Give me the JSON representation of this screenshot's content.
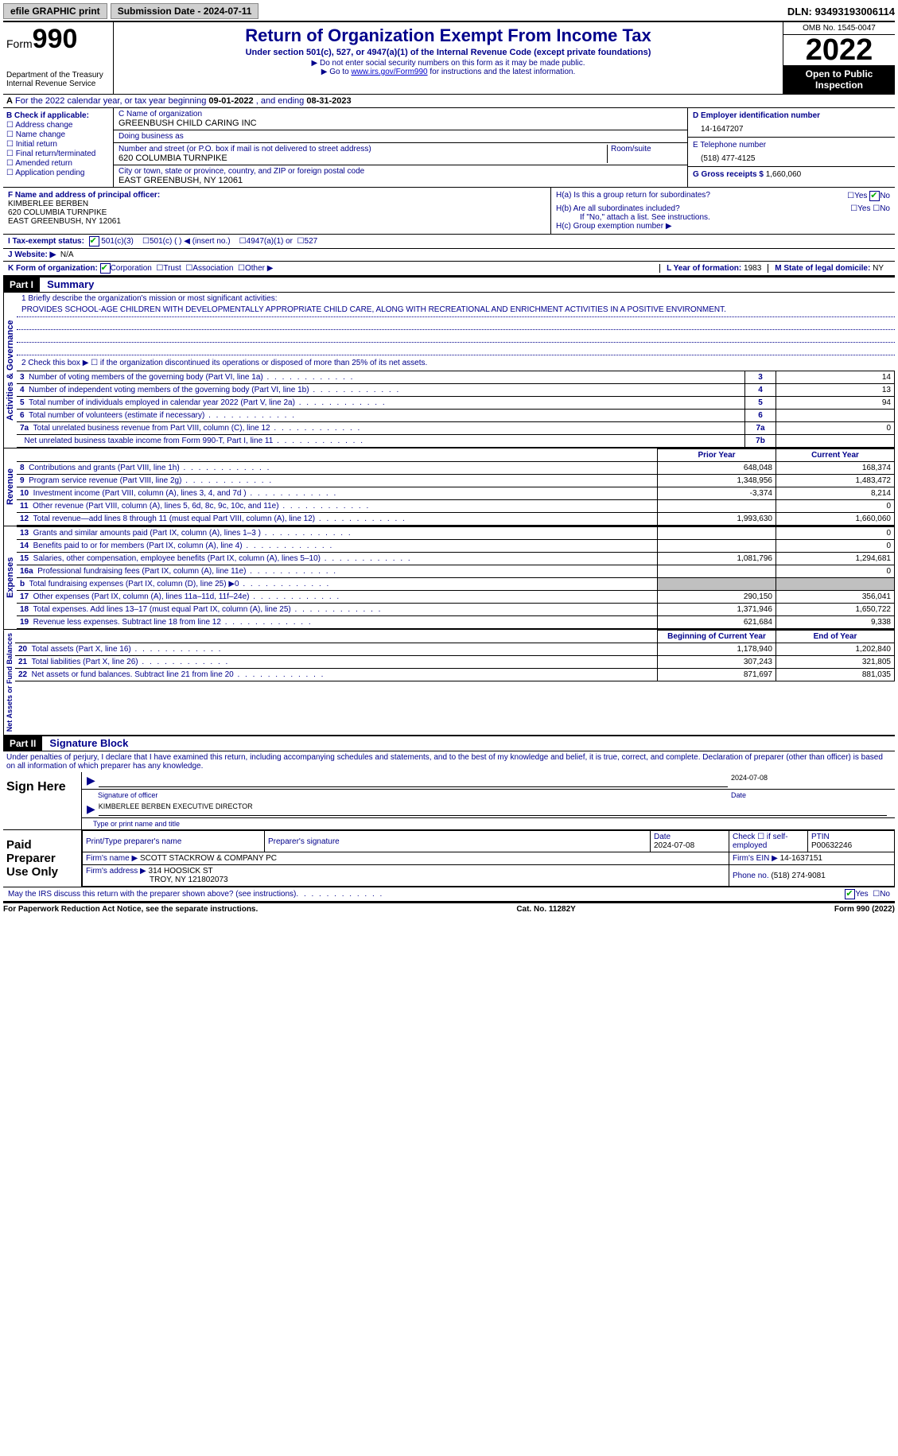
{
  "topbar": {
    "efile": "efile GRAPHIC print",
    "submission": "Submission Date - 2024-07-11",
    "dln": "DLN: 93493193006114"
  },
  "header": {
    "form_word": "Form",
    "form_num": "990",
    "dept": "Department of the Treasury",
    "irs": "Internal Revenue Service",
    "title": "Return of Organization Exempt From Income Tax",
    "sub": "Under section 501(c), 527, or 4947(a)(1) of the Internal Revenue Code (except private foundations)",
    "note1": "▶ Do not enter social security numbers on this form as it may be made public.",
    "note2_pre": "▶ Go to ",
    "note2_link": "www.irs.gov/Form990",
    "note2_post": " for instructions and the latest information.",
    "omb": "OMB No. 1545-0047",
    "year": "2022",
    "inspect": "Open to Public Inspection"
  },
  "rowA": {
    "label_a": "A",
    "text": " For the 2022 calendar year, or tax year beginning ",
    "begin": "09-01-2022",
    "mid": " , and ending ",
    "end": "08-31-2023"
  },
  "colB": {
    "header": "B Check if applicable:",
    "items": [
      "Address change",
      "Name change",
      "Initial return",
      "Final return/terminated",
      "Amended return",
      "Application pending"
    ]
  },
  "colC": {
    "name_lbl": "C Name of organization",
    "name": "GREENBUSH CHILD CARING INC",
    "dba_lbl": "Doing business as",
    "dba": "",
    "addr_lbl": "Number and street (or P.O. box if mail is not delivered to street address)",
    "room_lbl": "Room/suite",
    "addr": "620 COLUMBIA TURNPIKE",
    "city_lbl": "City or town, state or province, country, and ZIP or foreign postal code",
    "city": "EAST GREENBUSH, NY  12061"
  },
  "colD": {
    "ein_lbl": "D Employer identification number",
    "ein": "14-1647207",
    "tel_lbl": "E Telephone number",
    "tel": "(518) 477-4125",
    "gross_lbl": "G Gross receipts $",
    "gross": "1,660,060"
  },
  "rowF": {
    "lbl": "F Name and address of principal officer:",
    "name": "KIMBERLEE BERBEN",
    "addr1": "620 COLUMBIA TURNPIKE",
    "addr2": "EAST GREENBUSH, NY  12061"
  },
  "rowH": {
    "ha": "H(a)  Is this a group return for subordinates?",
    "hb": "H(b)  Are all subordinates included?",
    "hb_note": "If \"No,\" attach a list. See instructions.",
    "hc": "H(c)  Group exemption number ▶",
    "yes": "Yes",
    "no": "No"
  },
  "rowI": {
    "lbl": "I  Tax-exempt status:",
    "opt1": "501(c)(3)",
    "opt2": "501(c) (  ) ◀ (insert no.)",
    "opt3": "4947(a)(1) or",
    "opt4": "527"
  },
  "rowJ": {
    "lbl": "J  Website: ▶",
    "val": "N/A"
  },
  "rowK": {
    "lbl": "K Form of organization:",
    "opts": [
      "Corporation",
      "Trust",
      "Association",
      "Other ▶"
    ],
    "l_lbl": "L Year of formation:",
    "l_val": "1983",
    "m_lbl": "M State of legal domicile:",
    "m_val": "NY"
  },
  "part1": {
    "hdr": "Part I",
    "title": "Summary",
    "line1_lbl": "1  Briefly describe the organization's mission or most significant activities:",
    "mission": "PROVIDES SCHOOL-AGE CHILDREN WITH DEVELOPMENTALLY APPROPRIATE CHILD CARE, ALONG WITH RECREATIONAL AND ENRICHMENT ACTIVITIES IN A POSITIVE ENVIRONMENT.",
    "line2": "2   Check this box ▶ ☐  if the organization discontinued its operations or disposed of more than 25% of its net assets.",
    "side_ag": "Activities & Governance",
    "side_rev": "Revenue",
    "side_exp": "Expenses",
    "side_na": "Net Assets or Fund Balances",
    "rows_ag": [
      {
        "n": "3",
        "t": "Number of voting members of the governing body (Part VI, line 1a)",
        "box": "3",
        "v": "14"
      },
      {
        "n": "4",
        "t": "Number of independent voting members of the governing body (Part VI, line 1b)",
        "box": "4",
        "v": "13"
      },
      {
        "n": "5",
        "t": "Total number of individuals employed in calendar year 2022 (Part V, line 2a)",
        "box": "5",
        "v": "94"
      },
      {
        "n": "6",
        "t": "Total number of volunteers (estimate if necessary)",
        "box": "6",
        "v": ""
      },
      {
        "n": "7a",
        "t": "Total unrelated business revenue from Part VIII, column (C), line 12",
        "box": "7a",
        "v": "0"
      },
      {
        "n": "",
        "t": "Net unrelated business taxable income from Form 990-T, Part I, line 11",
        "box": "7b",
        "v": ""
      }
    ],
    "col_prior": "Prior Year",
    "col_curr": "Current Year",
    "rows_rev": [
      {
        "n": "8",
        "t": "Contributions and grants (Part VIII, line 1h)",
        "p": "648,048",
        "c": "168,374"
      },
      {
        "n": "9",
        "t": "Program service revenue (Part VIII, line 2g)",
        "p": "1,348,956",
        "c": "1,483,472"
      },
      {
        "n": "10",
        "t": "Investment income (Part VIII, column (A), lines 3, 4, and 7d )",
        "p": "-3,374",
        "c": "8,214"
      },
      {
        "n": "11",
        "t": "Other revenue (Part VIII, column (A), lines 5, 6d, 8c, 9c, 10c, and 11e)",
        "p": "",
        "c": "0"
      },
      {
        "n": "12",
        "t": "Total revenue—add lines 8 through 11 (must equal Part VIII, column (A), line 12)",
        "p": "1,993,630",
        "c": "1,660,060"
      }
    ],
    "rows_exp": [
      {
        "n": "13",
        "t": "Grants and similar amounts paid (Part IX, column (A), lines 1–3 )",
        "p": "",
        "c": "0"
      },
      {
        "n": "14",
        "t": "Benefits paid to or for members (Part IX, column (A), line 4)",
        "p": "",
        "c": "0"
      },
      {
        "n": "15",
        "t": "Salaries, other compensation, employee benefits (Part IX, column (A), lines 5–10)",
        "p": "1,081,796",
        "c": "1,294,681"
      },
      {
        "n": "16a",
        "t": "Professional fundraising fees (Part IX, column (A), line 11e)",
        "p": "",
        "c": "0"
      },
      {
        "n": "b",
        "t": "Total fundraising expenses (Part IX, column (D), line 25) ▶0",
        "p": "GREY",
        "c": "GREY"
      },
      {
        "n": "17",
        "t": "Other expenses (Part IX, column (A), lines 11a–11d, 11f–24e)",
        "p": "290,150",
        "c": "356,041"
      },
      {
        "n": "18",
        "t": "Total expenses. Add lines 13–17 (must equal Part IX, column (A), line 25)",
        "p": "1,371,946",
        "c": "1,650,722"
      },
      {
        "n": "19",
        "t": "Revenue less expenses. Subtract line 18 from line 12",
        "p": "621,684",
        "c": "9,338"
      }
    ],
    "col_begin": "Beginning of Current Year",
    "col_end": "End of Year",
    "rows_na": [
      {
        "n": "20",
        "t": "Total assets (Part X, line 16)",
        "p": "1,178,940",
        "c": "1,202,840"
      },
      {
        "n": "21",
        "t": "Total liabilities (Part X, line 26)",
        "p": "307,243",
        "c": "321,805"
      },
      {
        "n": "22",
        "t": "Net assets or fund balances. Subtract line 21 from line 20",
        "p": "871,697",
        "c": "881,035"
      }
    ]
  },
  "part2": {
    "hdr": "Part II",
    "title": "Signature Block",
    "decl": "Under penalties of perjury, I declare that I have examined this return, including accompanying schedules and statements, and to the best of my knowledge and belief, it is true, correct, and complete. Declaration of preparer (other than officer) is based on all information of which preparer has any knowledge.",
    "sign_here": "Sign Here",
    "sig_officer": "Signature of officer",
    "sig_date": "2024-07-08",
    "date_lbl": "Date",
    "name_title": "KIMBERLEE BERBEN  EXECUTIVE DIRECTOR",
    "type_name": "Type or print name and title",
    "paid": "Paid Preparer Use Only",
    "prep_name_lbl": "Print/Type preparer's name",
    "prep_sig_lbl": "Preparer's signature",
    "prep_date_lbl": "Date",
    "prep_date": "2024-07-08",
    "check_self": "Check ☐ if self-employed",
    "ptin_lbl": "PTIN",
    "ptin": "P00632246",
    "firm_name_lbl": "Firm's name    ▶",
    "firm_name": "SCOTT STACKROW & COMPANY PC",
    "firm_ein_lbl": "Firm's EIN ▶",
    "firm_ein": "14-1637151",
    "firm_addr_lbl": "Firm's address ▶",
    "firm_addr1": "314 HOOSICK ST",
    "firm_addr2": "TROY, NY  121802073",
    "phone_lbl": "Phone no.",
    "phone": "(518) 274-9081",
    "discuss": "May the IRS discuss this return with the preparer shown above? (see instructions)"
  },
  "footer": {
    "left": "For Paperwork Reduction Act Notice, see the separate instructions.",
    "mid": "Cat. No. 11282Y",
    "right": "Form 990 (2022)"
  }
}
